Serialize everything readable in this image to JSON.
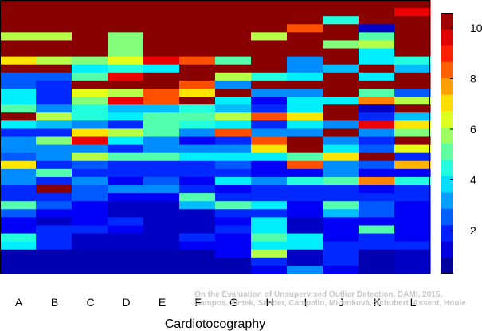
{
  "chart_data": {
    "type": "heatmap",
    "title": "",
    "xlabel": "Cardiotocography",
    "ylabel": "",
    "categories": [
      "A",
      "B",
      "C",
      "D",
      "E",
      "F",
      "G",
      "H",
      "I",
      "J",
      "K",
      "L"
    ],
    "rows": 34,
    "colorbar": {
      "min": 0.3,
      "max": 10.6,
      "ticks": [
        2,
        4,
        6,
        8,
        10
      ]
    },
    "grid": false,
    "caption_lines": [
      "On the Evaluation of Unsupervised Outlier Detection. DAMI, 2015.",
      "Campos, Zimek, Sander, Campello, Micenková, Schubert, Assent, Houle"
    ],
    "columns": [
      [
        10.5,
        10.5,
        10.5,
        10.5,
        6.0,
        10.5,
        10.5,
        7.0,
        10.5,
        2.5,
        2.5,
        4.0,
        4.0,
        5.0,
        10.5,
        4.0,
        2.0,
        3.0,
        3.0,
        2.5,
        7.0,
        3.0,
        3.0,
        2.0,
        2.0,
        5.0,
        2.5,
        1.5,
        1.5,
        4.5,
        4.0,
        0.8,
        0.8,
        0.8
      ],
      [
        10.5,
        10.5,
        10.5,
        10.5,
        6.0,
        10.5,
        10.5,
        6.0,
        10.5,
        2.5,
        2.0,
        2.0,
        2.0,
        3.0,
        6.0,
        3.5,
        2.0,
        5.5,
        3.0,
        3.0,
        2.0,
        5.0,
        2.0,
        10.5,
        2.0,
        2.5,
        1.5,
        1.0,
        2.0,
        2.0,
        2.0,
        0.8,
        0.8,
        0.8
      ],
      [
        10.5,
        10.5,
        10.5,
        10.5,
        10.5,
        10.5,
        10.5,
        5.5,
        4.0,
        5.0,
        10.5,
        6.5,
        5.5,
        4.5,
        4.5,
        3.0,
        7.0,
        9.5,
        3.0,
        6.0,
        2.5,
        2.0,
        3.0,
        2.5,
        2.5,
        1.5,
        1.5,
        1.5,
        2.0,
        1.0,
        1.0,
        0.8,
        0.8,
        0.8
      ],
      [
        10.5,
        10.5,
        10.5,
        10.5,
        5.5,
        5.5,
        5.5,
        6.5,
        4.5,
        9.5,
        10.5,
        6.0,
        9.5,
        3.5,
        4.0,
        2.0,
        6.0,
        4.0,
        2.0,
        5.0,
        2.0,
        2.0,
        1.5,
        3.0,
        1.5,
        1.0,
        1.0,
        2.0,
        1.5,
        1.0,
        1.0,
        0.8,
        0.8,
        0.8
      ],
      [
        10.5,
        10.5,
        10.5,
        10.5,
        10.5,
        10.5,
        10.5,
        9.5,
        4.0,
        10.5,
        10.5,
        8.5,
        8.5,
        3.5,
        5.0,
        5.0,
        5.0,
        3.0,
        3.0,
        5.0,
        2.0,
        2.0,
        2.5,
        3.0,
        1.5,
        1.0,
        1.0,
        1.0,
        1.0,
        1.0,
        1.0,
        0.8,
        0.8,
        0.8
      ],
      [
        10.5,
        10.5,
        10.5,
        10.5,
        10.5,
        10.5,
        10.5,
        8.5,
        10.5,
        10.5,
        8.5,
        7.0,
        10.5,
        4.5,
        5.0,
        4.5,
        3.0,
        1.5,
        3.0,
        4.0,
        2.0,
        2.0,
        1.5,
        2.0,
        5.0,
        3.5,
        1.0,
        1.0,
        1.0,
        2.0,
        1.5,
        0.8,
        0.8,
        0.8
      ],
      [
        10.5,
        10.5,
        10.5,
        10.5,
        10.5,
        10.5,
        10.5,
        5.0,
        10.5,
        6.0,
        3.0,
        10.5,
        4.0,
        3.5,
        6.0,
        4.0,
        8.5,
        2.0,
        3.0,
        4.0,
        2.5,
        2.0,
        4.0,
        1.5,
        2.0,
        5.0,
        2.0,
        1.5,
        2.0,
        1.5,
        1.5,
        1.5,
        0.8,
        0.8
      ],
      [
        10.5,
        10.5,
        10.5,
        10.5,
        6.0,
        10.5,
        10.5,
        10.5,
        10.5,
        4.5,
        10.5,
        3.0,
        1.5,
        2.0,
        8.5,
        2.0,
        3.0,
        8.5,
        7.0,
        4.0,
        1.5,
        1.5,
        3.0,
        2.0,
        2.0,
        4.0,
        2.0,
        4.0,
        4.0,
        5.0,
        4.0,
        6.0,
        2.0,
        1.5
      ],
      [
        10.5,
        10.5,
        10.5,
        8.5,
        10.5,
        10.5,
        10.5,
        3.0,
        3.0,
        4.0,
        10.5,
        3.0,
        4.0,
        4.0,
        7.0,
        4.0,
        3.0,
        10.5,
        10.5,
        5.0,
        8.5,
        1.5,
        4.5,
        2.0,
        2.0,
        1.5,
        1.5,
        1.0,
        1.0,
        4.0,
        4.0,
        1.0,
        1.0,
        3.0
      ],
      [
        10.5,
        10.5,
        4.5,
        10.5,
        10.5,
        5.5,
        10.5,
        10.5,
        3.5,
        10.5,
        10.5,
        10.5,
        4.0,
        10.5,
        10.5,
        3.0,
        10.5,
        3.0,
        4.0,
        7.0,
        3.0,
        3.0,
        5.0,
        2.0,
        2.0,
        5.0,
        3.5,
        1.5,
        1.5,
        1.5,
        2.0,
        2.0,
        2.0,
        1.5
      ],
      [
        10.5,
        10.5,
        10.5,
        1.0,
        5.0,
        6.0,
        4.0,
        4.0,
        10.5,
        4.0,
        10.5,
        5.0,
        8.0,
        1.0,
        2.0,
        9.5,
        3.0,
        2.0,
        2.5,
        10.5,
        2.5,
        1.5,
        8.0,
        1.5,
        2.0,
        2.5,
        2.5,
        1.5,
        5.0,
        2.0,
        2.0,
        0.8,
        0.8,
        0.8
      ],
      [
        10.5,
        9.5,
        10.5,
        10.5,
        10.5,
        10.5,
        10.5,
        4.5,
        3.5,
        10.5,
        10.5,
        2.5,
        6.0,
        10.5,
        3.5,
        7.0,
        5.5,
        10.5,
        6.5,
        2.0,
        7.5,
        1.5,
        4.5,
        2.0,
        2.0,
        1.5,
        1.5,
        1.5,
        1.5,
        1.5,
        2.0,
        1.0,
        1.0,
        1.0
      ]
    ]
  }
}
